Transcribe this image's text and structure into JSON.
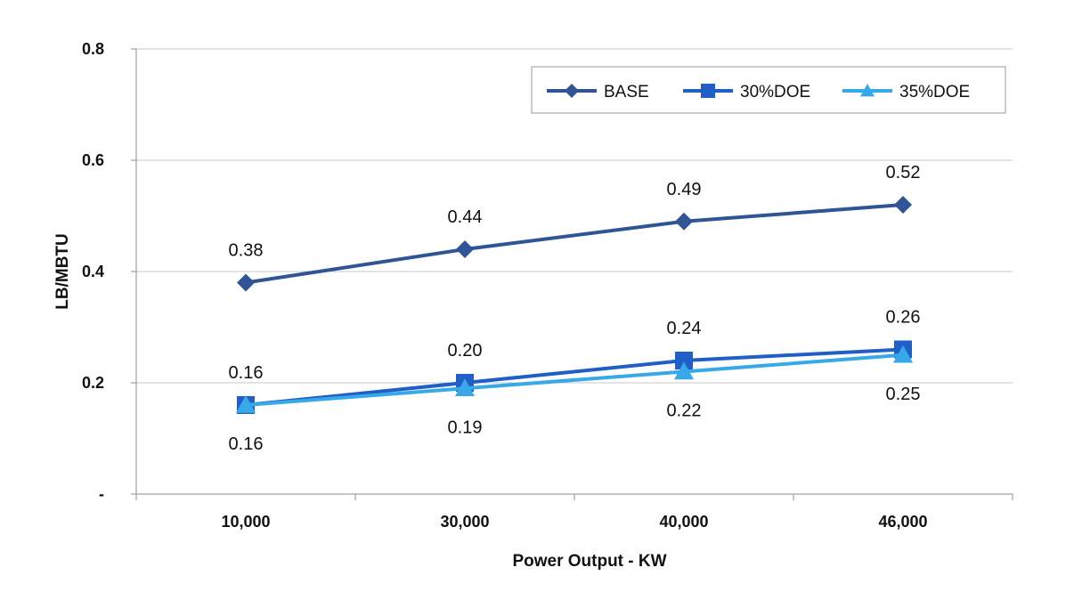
{
  "chart_data": {
    "type": "line",
    "categories": [
      "10,000",
      "30,000",
      "40,000",
      "46,000"
    ],
    "xlabel": "Power Output - KW",
    "ylabel": "LB/MBTU",
    "ylim": [
      0,
      0.8
    ],
    "yticks": [
      {
        "value": 0,
        "label": "-"
      },
      {
        "value": 0.2,
        "label": "0.2"
      },
      {
        "value": 0.4,
        "label": "0.4"
      },
      {
        "value": 0.6,
        "label": "0.6"
      },
      {
        "value": 0.8,
        "label": "0.8"
      }
    ],
    "grid": true,
    "legend_position": "top-right",
    "series": [
      {
        "name": "BASE",
        "marker": "diamond",
        "color": "#2F5597",
        "values": [
          0.38,
          0.44,
          0.49,
          0.52
        ],
        "labels": [
          "0.38",
          "0.44",
          "0.49",
          "0.52"
        ],
        "label_position": "above"
      },
      {
        "name": "30%DOE",
        "marker": "square",
        "color": "#1F5FC7",
        "values": [
          0.16,
          0.2,
          0.24,
          0.26
        ],
        "labels": [
          "0.16",
          "0.20",
          "0.24",
          "0.26"
        ],
        "label_position": "above"
      },
      {
        "name": "35%DOE",
        "marker": "triangle",
        "color": "#38A9E8",
        "values": [
          0.16,
          0.19,
          0.22,
          0.25
        ],
        "labels": [
          "0.16",
          "0.19",
          "0.22",
          "0.25"
        ],
        "label_position": "below"
      }
    ]
  }
}
